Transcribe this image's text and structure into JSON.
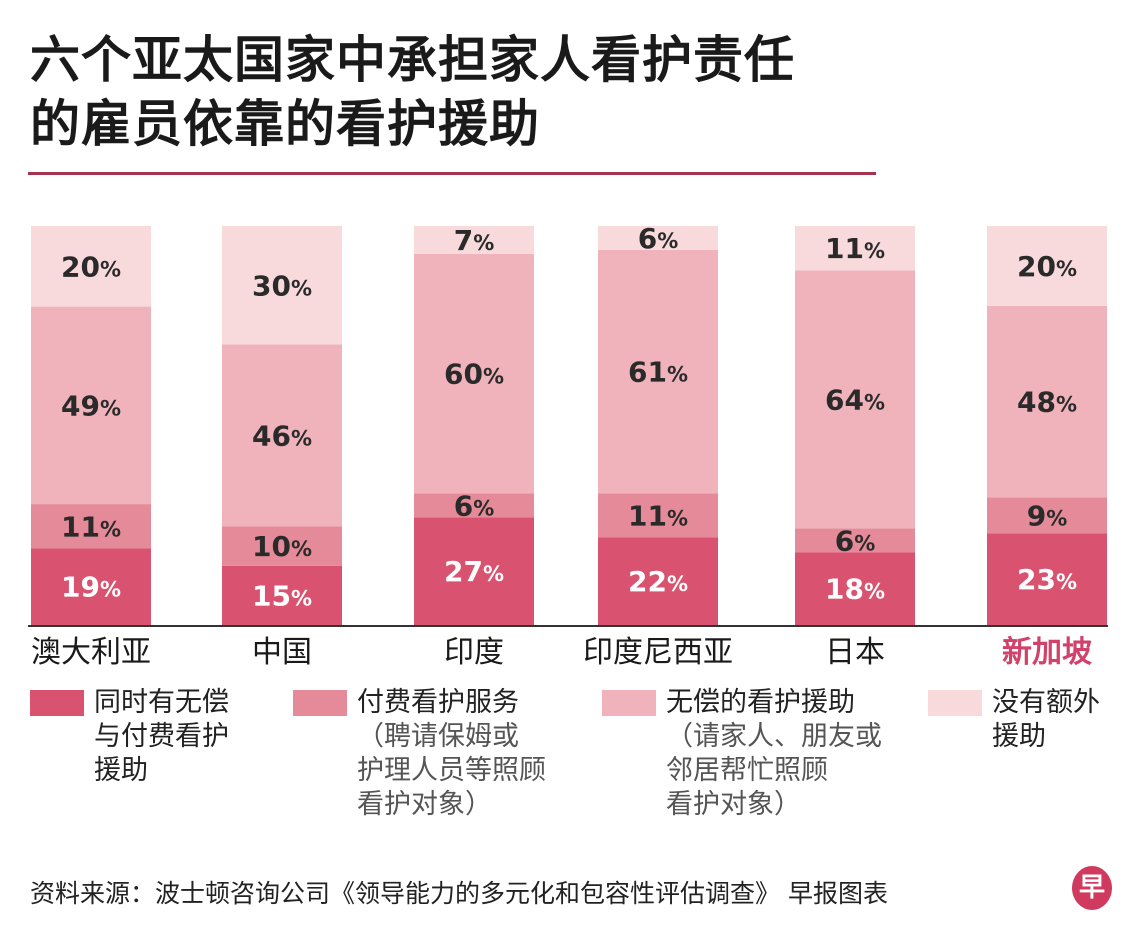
{
  "title": {
    "line1": "六个亚太国家中承担家人看护责任",
    "line2": "的雇员依靠的看护援助"
  },
  "chart_data": {
    "type": "bar",
    "stacked": true,
    "normalized_percent": true,
    "categories": [
      "澳大利亚",
      "中国",
      "印度",
      "印度尼西亚",
      "日本",
      "新加坡"
    ],
    "highlight_category": "新加坡",
    "series": [
      {
        "name": "同时有无偿与付费看护援助",
        "color": "#d9526f",
        "values": [
          19,
          15,
          27,
          22,
          18,
          23
        ]
      },
      {
        "name": "付费看护服务（聘请保姆或护理人员等照顾看护对象）",
        "color": "#e58a98",
        "values": [
          11,
          10,
          6,
          11,
          6,
          9
        ]
      },
      {
        "name": "无偿的看护援助（请家人、朋友或邻居帮忙照顾看护对象）",
        "color": "#f0b3bb",
        "values": [
          49,
          46,
          60,
          61,
          64,
          48
        ]
      },
      {
        "name": "没有额外援助",
        "color": "#f8dadd",
        "values": [
          20,
          30,
          7,
          6,
          11,
          20
        ]
      }
    ],
    "value_suffix": "%",
    "ylim": [
      0,
      100
    ]
  },
  "legend": [
    {
      "lines": [
        "同时有无偿",
        "与付费看护",
        "援助"
      ],
      "sub": []
    },
    {
      "lines": [
        "付费看护服务"
      ],
      "sub": [
        "（聘请保姆或",
        "护理人员等照顾",
        "看护对象）"
      ]
    },
    {
      "lines": [
        "无偿的看护援助"
      ],
      "sub": [
        "（请家人、朋友或",
        "邻居帮忙照顾",
        "看护对象）"
      ]
    },
    {
      "lines": [
        "没有额外",
        "援助"
      ],
      "sub": []
    }
  ],
  "colors": {
    "accent": "#a8324d",
    "highlight_label": "#d0426a",
    "logo": "#d03a5e"
  },
  "source": "资料来源：波士顿咨询公司《领导能力的多元化和包容性评估调查》 早报图表",
  "logo_text": "早"
}
